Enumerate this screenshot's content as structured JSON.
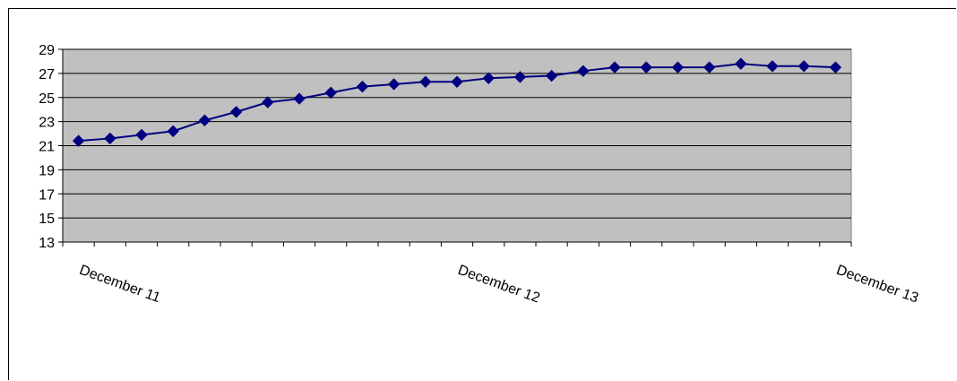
{
  "chart_data": {
    "type": "line",
    "title": "",
    "xlabel": "",
    "ylabel": "",
    "ylim": [
      13,
      29
    ],
    "yticks": [
      13,
      15,
      17,
      19,
      21,
      23,
      25,
      27,
      29
    ],
    "category_labels": [
      "December 11",
      "December 12",
      "December 13"
    ],
    "grid": true,
    "legend": "none",
    "colors": {
      "plot_background": "#c0c0c0",
      "series_line": "#000080",
      "gridline": "#000000"
    },
    "series": [
      {
        "values": [
          21.4,
          21.6,
          21.9,
          22.2,
          23.1,
          23.8,
          24.6,
          24.9,
          25.4,
          25.9,
          26.1,
          26.3,
          26.3,
          26.6,
          26.7,
          26.8,
          27.2,
          27.5,
          27.5,
          27.5,
          27.5,
          27.8,
          27.6,
          27.6,
          27.5
        ]
      }
    ]
  }
}
